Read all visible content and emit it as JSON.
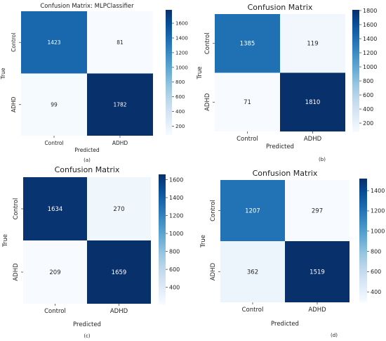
{
  "chart_data": [
    {
      "type": "heatmap",
      "panel_label": "(a)",
      "title": "Confusion Matrix: MLPClassifier",
      "xlabel": "Predicted",
      "ylabel": "True",
      "row_labels": [
        "Control",
        "ADHD"
      ],
      "col_labels": [
        "Control",
        "ADHD"
      ],
      "values": [
        [
          1423,
          81
        ],
        [
          99,
          1782
        ]
      ],
      "colormap": "Blues",
      "colorbar_range": [
        81,
        1782
      ],
      "colorbar_ticks": [
        200,
        400,
        600,
        800,
        1000,
        1200,
        1400,
        1600
      ]
    },
    {
      "type": "heatmap",
      "panel_label": "(b)",
      "title": "Confusion Matrix",
      "xlabel": "Predicted",
      "ylabel": "True",
      "row_labels": [
        "Control",
        "ADHD"
      ],
      "col_labels": [
        "Control",
        "ADHD"
      ],
      "values": [
        [
          1385,
          119
        ],
        [
          71,
          1810
        ]
      ],
      "colormap": "Blues",
      "colorbar_range": [
        71,
        1810
      ],
      "colorbar_ticks": [
        200,
        400,
        600,
        800,
        1000,
        1200,
        1400,
        1600,
        1800
      ]
    },
    {
      "type": "heatmap",
      "panel_label": "(c)",
      "title": "Confusion Matrix",
      "xlabel": "Predicted",
      "ylabel": "True",
      "row_labels": [
        "Control",
        "ADHD"
      ],
      "col_labels": [
        "Control",
        "ADHD"
      ],
      "values": [
        [
          1634,
          270
        ],
        [
          209,
          1659
        ]
      ],
      "colormap": "Blues",
      "colorbar_range": [
        209,
        1659
      ],
      "colorbar_ticks": [
        400,
        600,
        800,
        1000,
        1200,
        1400,
        1600
      ]
    },
    {
      "type": "heatmap",
      "panel_label": "(d)",
      "title": "Confusion Matrix",
      "xlabel": "Predicted",
      "ylabel": "True",
      "row_labels": [
        "Control",
        "ADHD"
      ],
      "col_labels": [
        "Control",
        "ADHD"
      ],
      "values": [
        [
          1207,
          297
        ],
        [
          362,
          1519
        ]
      ],
      "colormap": "Blues",
      "colorbar_range": [
        297,
        1519
      ],
      "colorbar_ticks": [
        400,
        600,
        800,
        1000,
        1200,
        1400
      ]
    }
  ]
}
